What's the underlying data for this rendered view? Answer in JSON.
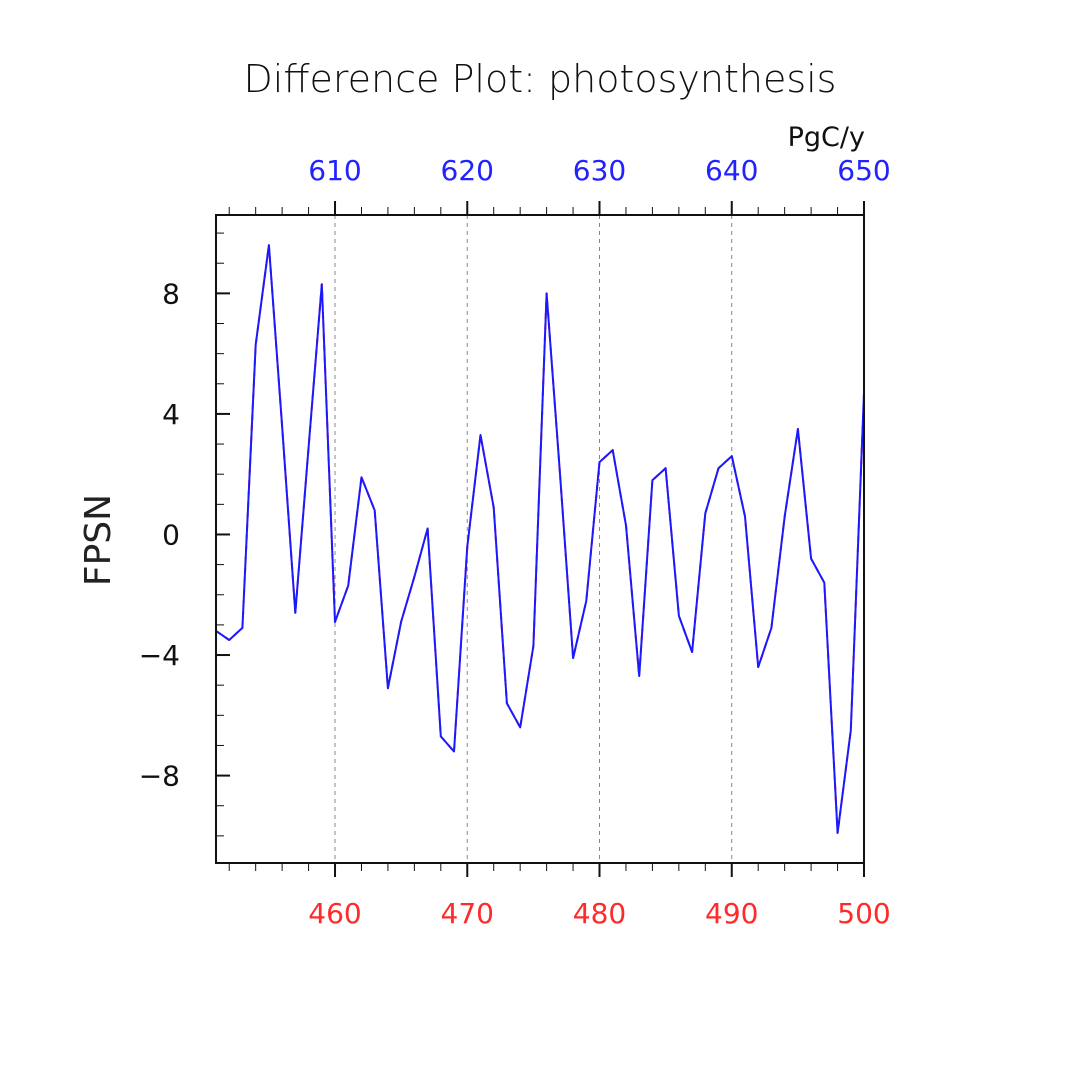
{
  "chart_data": {
    "type": "line",
    "title": "Difference Plot: photosynthesis",
    "units": "PgC/y",
    "ylabel": "FPSN",
    "xlabel": "",
    "bottom_axis": {
      "label_color": "#ff2a2a",
      "xlim": [
        451,
        500
      ],
      "ticks": [
        460,
        470,
        480,
        490,
        500
      ],
      "tick_labels": [
        "460",
        "470",
        "480",
        "490",
        "500"
      ]
    },
    "top_axis": {
      "label_color": "#2222ff",
      "xlim": [
        601,
        650
      ],
      "ticks": [
        610,
        620,
        630,
        640,
        650
      ],
      "tick_labels": [
        "610",
        "620",
        "630",
        "640",
        "650"
      ]
    },
    "ylim": [
      -10.9,
      10.6
    ],
    "yticks": [
      -8,
      -4,
      0,
      4,
      8
    ],
    "ytick_labels": [
      "−8",
      "−4",
      "0",
      "4",
      "8"
    ],
    "grid": "vertical dashed at major x ticks",
    "x": [
      451,
      452,
      453,
      454,
      455,
      456,
      457,
      458,
      459,
      460,
      461,
      462,
      463,
      464,
      465,
      466,
      467,
      468,
      469,
      470,
      471,
      472,
      473,
      474,
      475,
      476,
      477,
      478,
      479,
      480,
      481,
      482,
      483,
      484,
      485,
      486,
      487,
      488,
      489,
      490,
      491,
      492,
      493,
      494,
      495,
      496,
      497,
      498,
      499,
      500
    ],
    "series": [
      {
        "line_color": "#ff2a2a",
        "dash": true,
        "values": [
          -3.2,
          -3.5,
          -3.1,
          6.3,
          9.6,
          3.6,
          -2.6,
          2.9,
          8.3,
          -2.9,
          -1.7,
          1.9,
          0.8,
          -5.1,
          -2.9,
          -1.4,
          0.2,
          -6.7,
          -7.2,
          -0.4,
          3.3,
          0.9,
          -5.6,
          -6.4,
          -3.7,
          8.0,
          2.1,
          -4.1,
          -2.2,
          2.4,
          2.8,
          0.3,
          -4.7,
          1.8,
          2.2,
          -2.7,
          -3.9,
          0.7,
          2.2,
          2.6,
          0.6,
          -4.4,
          -3.1,
          0.6,
          3.5,
          -0.8,
          -1.6,
          -9.9,
          -6.5,
          4.7
        ]
      },
      {
        "line_color": "#1a1aff",
        "dash": false,
        "values": [
          -3.2,
          -3.5,
          -3.1,
          6.3,
          9.6,
          3.6,
          -2.6,
          2.9,
          8.3,
          -2.9,
          -1.7,
          1.9,
          0.8,
          -5.1,
          -2.9,
          -1.4,
          0.2,
          -6.7,
          -7.2,
          -0.4,
          3.3,
          0.9,
          -5.6,
          -6.4,
          -3.7,
          8.0,
          2.1,
          -4.1,
          -2.2,
          2.4,
          2.8,
          0.3,
          -4.7,
          1.8,
          2.2,
          -2.7,
          -3.9,
          0.7,
          2.2,
          2.6,
          0.6,
          -4.4,
          -3.1,
          0.6,
          3.5,
          -0.8,
          -1.6,
          -9.9,
          -6.5,
          4.7
        ]
      }
    ]
  }
}
